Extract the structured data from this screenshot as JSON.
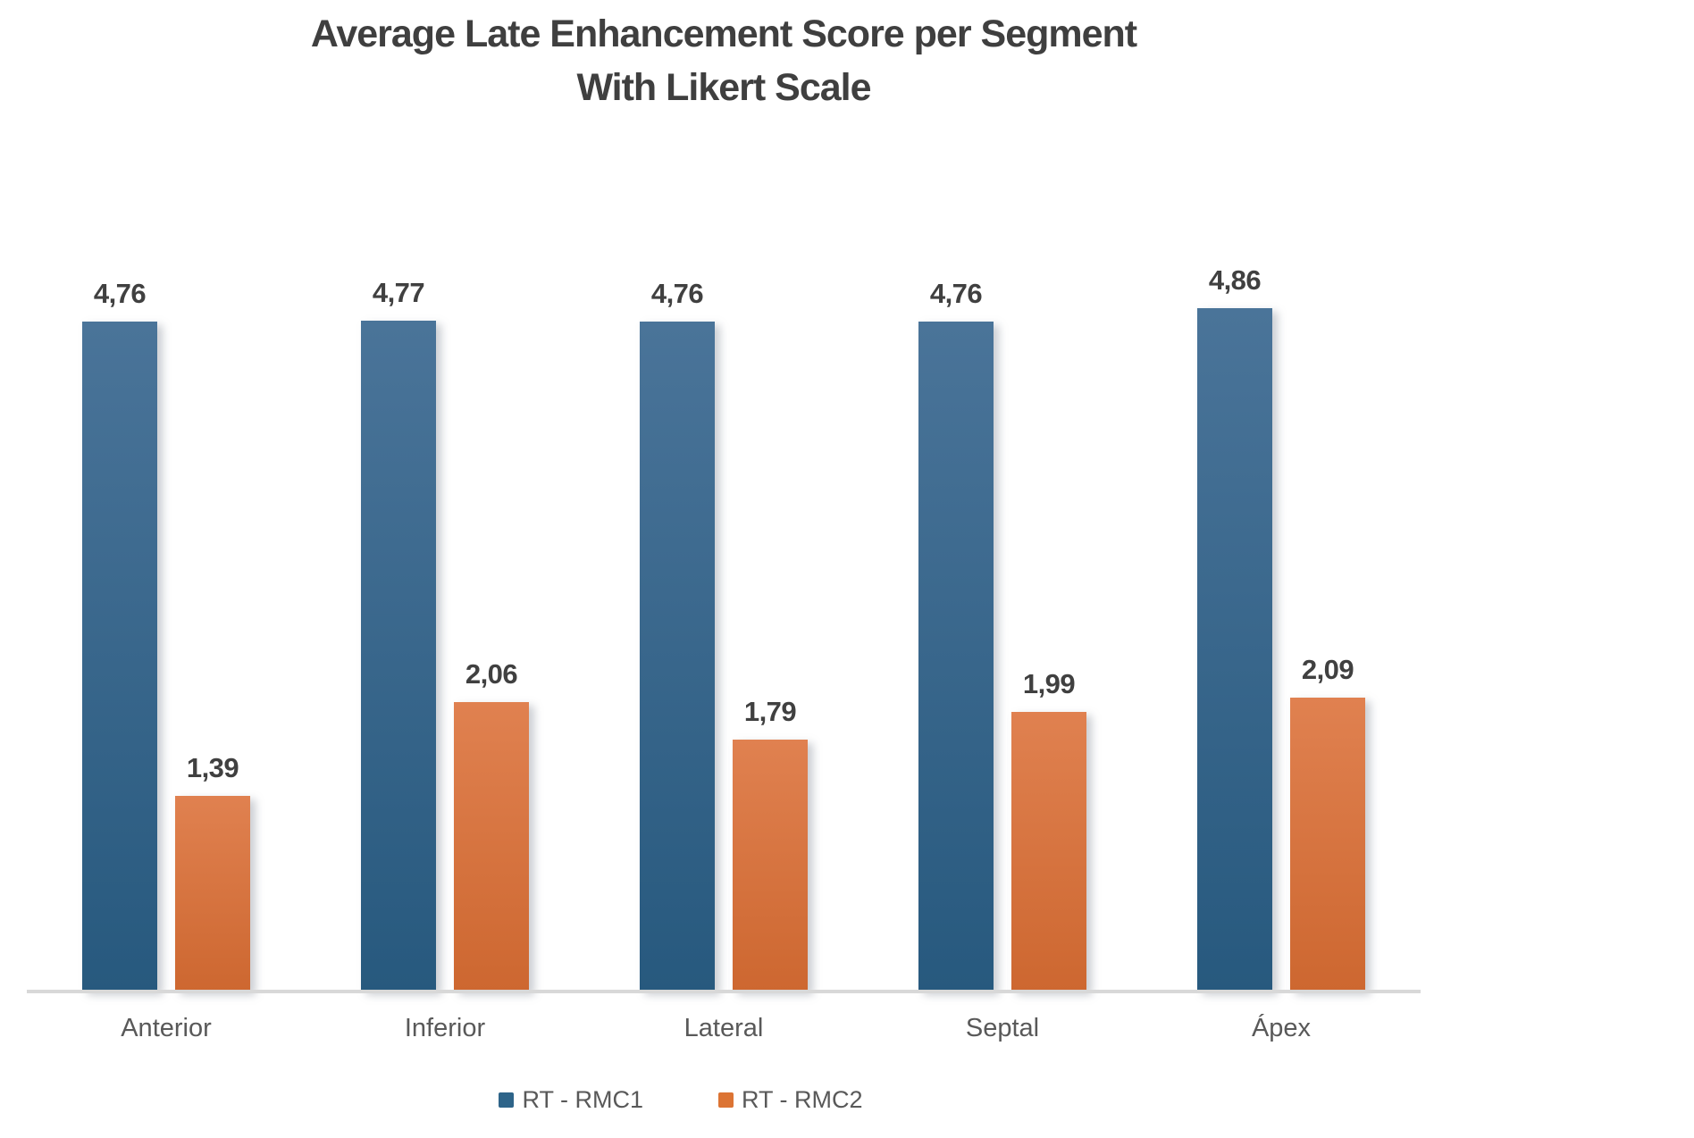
{
  "chart_data": {
    "type": "bar",
    "title": "Average Late Enhancement Score per Segment With Likert Scale",
    "title_lines": [
      "Average Late Enhancement Score per Segment",
      "With Likert Scale"
    ],
    "categories": [
      "Anterior",
      "Inferior",
      "Lateral",
      "Septal",
      "Ápex"
    ],
    "series": [
      {
        "name": "RT - RMC1",
        "values": [
          4.76,
          4.77,
          4.76,
          4.76,
          4.86
        ],
        "labels": [
          "4,76",
          "4,77",
          "4,76",
          "4,76",
          "4,86"
        ],
        "color_top": "#4A7499",
        "color_bottom": "#27597E",
        "legend_color": "#2E6489"
      },
      {
        "name": "RT - RMC2",
        "values": [
          1.39,
          2.06,
          1.79,
          1.99,
          2.09
        ],
        "labels": [
          "1,39",
          "2,06",
          "1,79",
          "1,99",
          "2,09"
        ],
        "color_top": "#E08150",
        "color_bottom": "#CD6730",
        "legend_color": "#DC7434"
      }
    ],
    "ylim": [
      0,
      5
    ],
    "decimal_separator": ",",
    "data_labels": true,
    "gridlines": false,
    "legend_position": "bottom",
    "axis_line_color": "#D8D8D8",
    "text_colors": {
      "title": "#3F3F3F",
      "data_label": "#404040",
      "category": "#595959",
      "legend": "#595959"
    }
  }
}
